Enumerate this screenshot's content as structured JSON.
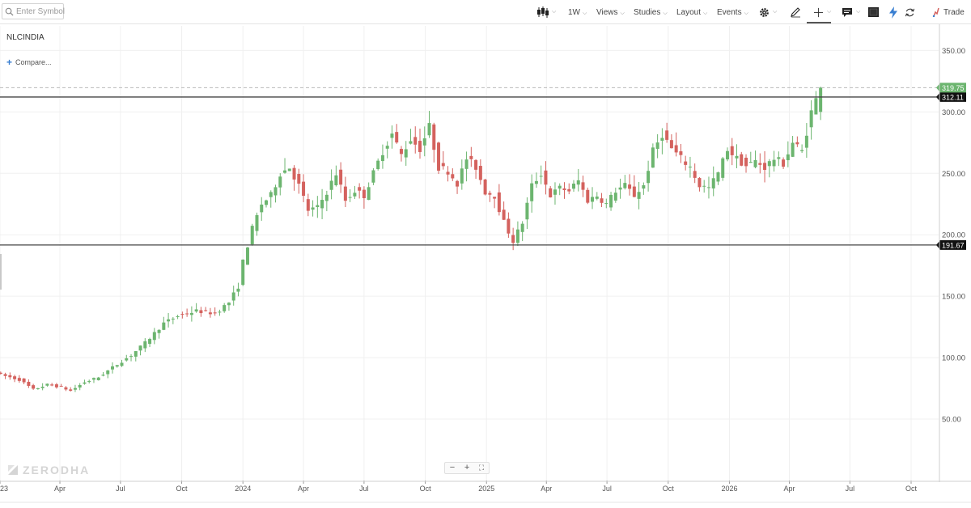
{
  "toolbar": {
    "search_placeholder": "Enter Symbol",
    "interval": "1W",
    "views": "Views",
    "studies": "Studies",
    "layout": "Layout",
    "events": "Events",
    "trade": "Trade",
    "icons": [
      "search-icon",
      "candlestick-icon",
      "gear-icon",
      "pencil-icon",
      "crosshair-icon",
      "comment-icon",
      "fullscreen-icon",
      "lightning-icon",
      "refresh-icon",
      "trade-icon"
    ]
  },
  "chart": {
    "symbol": "NLCINDIA",
    "compare_label": "Compare...",
    "watermark": "ZERODHA",
    "zoom_minus": "−",
    "zoom_plus": "+",
    "zoom_fit": "⛶",
    "last_price": "319.75",
    "level_high": "312.11",
    "level_low": "191.67",
    "colors": {
      "up": "#6cb56f",
      "down": "#d4625e",
      "grid": "#f0f0f0",
      "level": "#444444",
      "last_badge": "#6cb56f",
      "level_badge": "#111111"
    }
  },
  "chart_data": {
    "type": "candlestick",
    "interval": "1W",
    "ylim": [
      0,
      370
    ],
    "y_ticks": [
      50,
      100,
      150,
      200,
      250,
      300,
      350
    ],
    "y_tick_labels": [
      "50.00",
      "100.00",
      "150.00",
      "200.00",
      "250.00",
      "300.00",
      "350.00"
    ],
    "x_tick_labels": [
      "23",
      "Apr",
      "Jul",
      "Oct",
      "2024",
      "Apr",
      "Jul",
      "Oct",
      "2025",
      "Apr",
      "Jul",
      "Oct",
      "2026",
      "Apr",
      "Jul",
      "Oct"
    ],
    "x_tick_dates": [
      "2023-01-01",
      "2023-04-01",
      "2023-07-01",
      "2023-10-01",
      "2024-01-01",
      "2024-04-01",
      "2024-07-01",
      "2024-10-01",
      "2025-01-01",
      "2025-04-01",
      "2025-07-01",
      "2025-10-01",
      "2026-01-01",
      "2026-04-01",
      "2026-07-01",
      "2026-10-01"
    ],
    "horizontal_levels": [
      312.11,
      191.67
    ],
    "last_price": 319.75,
    "series_start_week": "2023-01-02",
    "close_anchors": [
      [
        0,
        86
      ],
      [
        4,
        82
      ],
      [
        7,
        74
      ],
      [
        10,
        78
      ],
      [
        13,
        76
      ],
      [
        15,
        73
      ],
      [
        18,
        80
      ],
      [
        21,
        84
      ],
      [
        24,
        92
      ],
      [
        28,
        102
      ],
      [
        31,
        112
      ],
      [
        35,
        128
      ],
      [
        38,
        134
      ],
      [
        42,
        138
      ],
      [
        46,
        136
      ],
      [
        49,
        145
      ],
      [
        51,
        158
      ],
      [
        52,
        178
      ],
      [
        54,
        205
      ],
      [
        56,
        225
      ],
      [
        58,
        232
      ],
      [
        60,
        250
      ],
      [
        62,
        255
      ],
      [
        64,
        240
      ],
      [
        66,
        220
      ],
      [
        68,
        222
      ],
      [
        70,
        235
      ],
      [
        72,
        250
      ],
      [
        74,
        228
      ],
      [
        76,
        236
      ],
      [
        78,
        232
      ],
      [
        80,
        250
      ],
      [
        82,
        268
      ],
      [
        84,
        282
      ],
      [
        86,
        265
      ],
      [
        88,
        278
      ],
      [
        90,
        270
      ],
      [
        92,
        288
      ],
      [
        94,
        255
      ],
      [
        96,
        252
      ],
      [
        98,
        242
      ],
      [
        100,
        262
      ],
      [
        102,
        255
      ],
      [
        104,
        235
      ],
      [
        106,
        232
      ],
      [
        108,
        210
      ],
      [
        110,
        195
      ],
      [
        112,
        210
      ],
      [
        114,
        240
      ],
      [
        116,
        250
      ],
      [
        118,
        232
      ],
      [
        120,
        238
      ],
      [
        122,
        236
      ],
      [
        124,
        244
      ],
      [
        126,
        228
      ],
      [
        128,
        232
      ],
      [
        130,
        225
      ],
      [
        132,
        236
      ],
      [
        134,
        240
      ],
      [
        136,
        232
      ],
      [
        138,
        240
      ],
      [
        140,
        268
      ],
      [
        142,
        282
      ],
      [
        144,
        270
      ],
      [
        146,
        262
      ],
      [
        148,
        255
      ],
      [
        150,
        240
      ],
      [
        152,
        238
      ],
      [
        154,
        250
      ],
      [
        156,
        270
      ],
      [
        158,
        262
      ],
      [
        160,
        256
      ],
      [
        162,
        260
      ],
      [
        164,
        255
      ],
      [
        166,
        262
      ],
      [
        168,
        258
      ],
      [
        170,
        275
      ],
      [
        172,
        268
      ],
      [
        174,
        300
      ],
      [
        176,
        319.75
      ]
    ]
  }
}
